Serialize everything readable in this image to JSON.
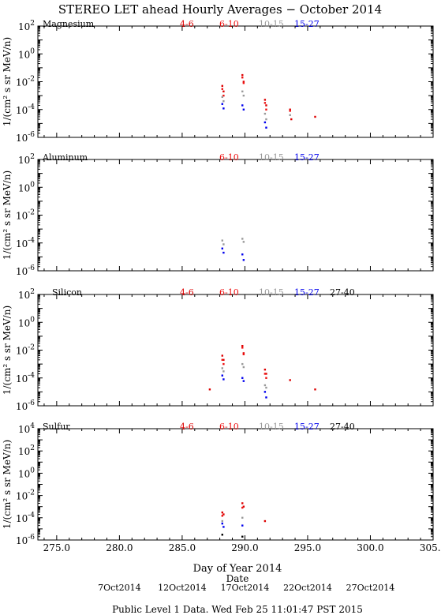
{
  "title": "STEREO LET ahead Hourly Averages − October 2014",
  "xlabel": "Day of Year 2014",
  "date_label": "Date",
  "footer": "Public Level 1 Data. Wed Feb 25 11:01:47 PST 2015",
  "x_ticks": [
    "275.0",
    "280.0",
    "285.0",
    "290.0",
    "295.0",
    "300.0",
    "305.0"
  ],
  "x_tick_values": [
    275,
    280,
    285,
    290,
    295,
    300,
    305
  ],
  "date_ticks": [
    {
      "doy": 280,
      "label": "7Oct2014"
    },
    {
      "doy": 285,
      "label": "12Oct2014"
    },
    {
      "doy": 290,
      "label": "17Oct2014"
    },
    {
      "doy": 295,
      "label": "22Oct2014"
    },
    {
      "doy": 300,
      "label": "27Oct2014"
    }
  ],
  "colors": {
    "4-6": "#dd0000",
    "6-10": "#ee1111",
    "10-15": "#999999",
    "15-27": "#0000ee",
    "27-40": "#000000",
    "axis": "#000000"
  },
  "chart_data": [
    {
      "type": "scatter",
      "panel": "Magnesium",
      "ylabel": "1/(cm² s sr MeV/n)",
      "xlim": [
        273.5,
        305
      ],
      "ylog": true,
      "ylim_exp": [
        -6,
        2
      ],
      "yticks_exp": [
        -6,
        -4,
        -2,
        0,
        2
      ],
      "legend": [
        "4-6",
        "6-10",
        "10-15",
        "15-27"
      ],
      "series": [
        {
          "name": "4-6",
          "points": [
            [
              288.2,
              0.005
            ],
            [
              288.3,
              0.002
            ],
            [
              289.8,
              0.03
            ],
            [
              289.9,
              0.01
            ],
            [
              291.6,
              0.0005
            ],
            [
              291.7,
              0.0002
            ],
            [
              293.6,
              0.0001
            ],
            [
              293.7,
              2e-05
            ],
            [
              295.6,
              3e-05
            ]
          ]
        },
        {
          "name": "6-10",
          "points": [
            [
              288.2,
              0.003
            ],
            [
              288.3,
              0.001
            ],
            [
              289.8,
              0.02
            ],
            [
              289.9,
              0.008
            ],
            [
              291.6,
              0.0003
            ],
            [
              291.7,
              0.0001
            ],
            [
              293.6,
              8e-05
            ]
          ]
        },
        {
          "name": "10-15",
          "points": [
            [
              288.2,
              0.0008
            ],
            [
              288.3,
              0.0004
            ],
            [
              289.8,
              0.002
            ],
            [
              289.9,
              0.001
            ],
            [
              291.6,
              5e-05
            ],
            [
              291.7,
              2e-05
            ],
            [
              293.6,
              4e-05
            ]
          ]
        },
        {
          "name": "15-27",
          "points": [
            [
              288.2,
              0.00025
            ],
            [
              288.3,
              0.00012
            ],
            [
              289.8,
              0.0002
            ],
            [
              289.9,
              0.0001
            ],
            [
              291.6,
              1.2e-05
            ],
            [
              291.7,
              5e-06
            ]
          ]
        }
      ]
    },
    {
      "type": "scatter",
      "panel": "Aluminum",
      "ylabel": "1/(cm² s sr MeV/n)",
      "xlim": [
        273.5,
        305
      ],
      "ylog": true,
      "ylim_exp": [
        -6,
        2
      ],
      "yticks_exp": [
        -6,
        -4,
        -2,
        0,
        2
      ],
      "legend": [
        "6-10",
        "10-15",
        "15-27"
      ],
      "series": [
        {
          "name": "6-10",
          "points": []
        },
        {
          "name": "10-15",
          "points": [
            [
              288.2,
              0.00015
            ],
            [
              288.3,
              8e-05
            ],
            [
              289.8,
              0.0002
            ],
            [
              289.9,
              0.00012
            ]
          ]
        },
        {
          "name": "15-27",
          "points": [
            [
              288.2,
              4e-05
            ],
            [
              288.3,
              2e-05
            ],
            [
              289.8,
              1.5e-05
            ],
            [
              289.9,
              6e-06
            ]
          ]
        }
      ]
    },
    {
      "type": "scatter",
      "panel": "Silicon",
      "ylabel": "1/(cm² s sr MeV/n)",
      "xlim": [
        273.5,
        305
      ],
      "ylog": true,
      "ylim_exp": [
        -6,
        2
      ],
      "yticks_exp": [
        -6,
        -4,
        -2,
        0,
        2
      ],
      "legend": [
        "4-6",
        "6-10",
        "10-15",
        "15-27",
        "27-40"
      ],
      "series": [
        {
          "name": "4-6",
          "points": [
            [
              287.2,
              1.5e-05
            ],
            [
              288.2,
              0.004
            ],
            [
              288.3,
              0.002
            ],
            [
              289.8,
              0.02
            ],
            [
              289.9,
              0.006
            ],
            [
              291.6,
              0.0004
            ],
            [
              291.7,
              0.0002
            ],
            [
              293.6,
              7e-05
            ],
            [
              295.6,
              1.5e-05
            ]
          ]
        },
        {
          "name": "6-10",
          "points": [
            [
              288.2,
              0.002
            ],
            [
              288.3,
              0.001
            ],
            [
              289.8,
              0.015
            ],
            [
              289.9,
              0.005
            ],
            [
              291.6,
              0.0002
            ],
            [
              291.7,
              0.0001
            ]
          ]
        },
        {
          "name": "10-15",
          "points": [
            [
              288.2,
              0.0005
            ],
            [
              288.3,
              0.0003
            ],
            [
              289.8,
              0.001
            ],
            [
              289.9,
              0.0006
            ],
            [
              291.6,
              3e-05
            ],
            [
              291.7,
              2e-05
            ]
          ]
        },
        {
          "name": "15-27",
          "points": [
            [
              288.2,
              0.00015
            ],
            [
              288.3,
              8e-05
            ],
            [
              289.8,
              0.0001
            ],
            [
              289.9,
              6e-05
            ],
            [
              291.6,
              1e-05
            ],
            [
              291.7,
              4e-06
            ]
          ]
        },
        {
          "name": "27-40",
          "points": []
        }
      ]
    },
    {
      "type": "scatter",
      "panel": "Sulfur",
      "ylabel": "1/(cm² s sr MeV/n)",
      "xlim": [
        273.5,
        305
      ],
      "ylog": true,
      "ylim_exp": [
        -6,
        4
      ],
      "yticks_exp": [
        -6,
        -4,
        -2,
        0,
        2,
        4
      ],
      "legend": [
        "4-6",
        "6-10",
        "10-15",
        "15-27",
        "27-40"
      ],
      "series": [
        {
          "name": "4-6",
          "points": [
            [
              288.2,
              0.0003
            ],
            [
              288.3,
              0.0002
            ],
            [
              289.8,
              0.002
            ],
            [
              289.9,
              0.001
            ],
            [
              291.6,
              5e-05
            ]
          ]
        },
        {
          "name": "6-10",
          "points": [
            [
              288.2,
              0.00015
            ],
            [
              289.8,
              0.0008
            ]
          ]
        },
        {
          "name": "10-15",
          "points": [
            [
              288.2,
              5e-05
            ],
            [
              289.8,
              0.0001
            ]
          ]
        },
        {
          "name": "15-27",
          "points": [
            [
              288.2,
              3e-05
            ],
            [
              288.3,
              1.5e-05
            ],
            [
              289.8,
              2e-05
            ]
          ]
        },
        {
          "name": "27-40",
          "points": [
            [
              288.2,
              3e-06
            ],
            [
              289.8,
              2e-06
            ]
          ]
        }
      ]
    }
  ]
}
